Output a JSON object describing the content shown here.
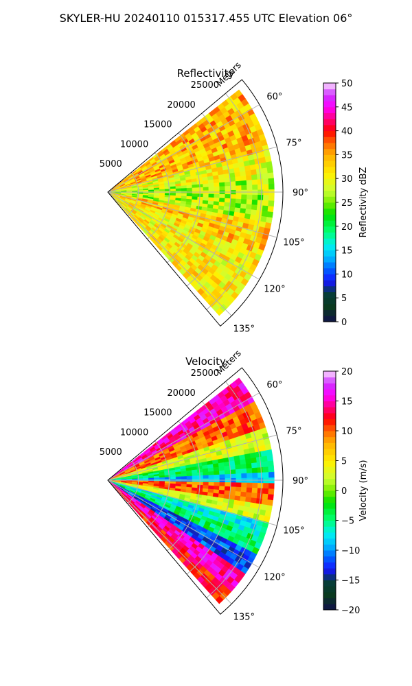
{
  "figure": {
    "title": "SKYLER-HU  20240110  015317.455 UTC Elevation 06°"
  },
  "chart_data": [
    {
      "type": "heatmap",
      "projection": "polar-sector",
      "title": "Reflectivity",
      "range_label": "Meters",
      "range_ticks": [
        5000,
        10000,
        15000,
        20000,
        25000
      ],
      "range_max": 28500,
      "azimuth_ticks": [
        "60°",
        "75°",
        "90°",
        "105°",
        "120°",
        "135°"
      ],
      "azimuth_tick_values": [
        60,
        75,
        90,
        105,
        120,
        135
      ],
      "azimuth_range": [
        50,
        140
      ],
      "grid": true,
      "colorbar": {
        "label": "Reflectivity dBZ",
        "min": 0,
        "max": 50,
        "ticks": [
          0,
          5,
          10,
          15,
          20,
          25,
          30,
          35,
          40,
          45,
          50
        ],
        "tick_labels": [
          "0",
          "5",
          "10",
          "15",
          "20",
          "25",
          "30",
          "35",
          "40",
          "45",
          "50"
        ]
      },
      "field_summary": {
        "dominant_range": [
          25,
          38
        ],
        "bands": [
          {
            "azimuth": [
              52,
              75
            ],
            "value_dBZ": 34
          },
          {
            "azimuth": [
              75,
              85
            ],
            "value_dBZ": 30
          },
          {
            "azimuth": [
              85,
              100
            ],
            "value_dBZ": 27
          },
          {
            "azimuth": [
              100,
              112
            ],
            "value_dBZ": 33
          },
          {
            "azimuth": [
              112,
              140
            ],
            "value_dBZ": 31
          }
        ]
      }
    },
    {
      "type": "heatmap",
      "projection": "polar-sector",
      "title": "Velocity",
      "range_label": "Meters",
      "range_ticks": [
        5000,
        10000,
        15000,
        20000,
        25000
      ],
      "range_max": 28500,
      "azimuth_ticks": [
        "60°",
        "75°",
        "90°",
        "105°",
        "120°",
        "135°"
      ],
      "azimuth_tick_values": [
        60,
        75,
        90,
        105,
        120,
        135
      ],
      "azimuth_range": [
        50,
        140
      ],
      "grid": true,
      "colorbar": {
        "label": "Velocity (m/s)",
        "min": -20,
        "max": 20,
        "ticks": [
          -20,
          -15,
          -10,
          -5,
          0,
          5,
          10,
          15,
          20
        ],
        "tick_labels": [
          "−20",
          "−15",
          "−10",
          "−5",
          "0",
          "5",
          "10",
          "15",
          "20"
        ]
      },
      "field_summary": {
        "bands": [
          {
            "azimuth": [
              52,
              62
            ],
            "value_ms": 15
          },
          {
            "azimuth": [
              62,
              72
            ],
            "value_ms": 10
          },
          {
            "azimuth": [
              72,
              80
            ],
            "value_ms": 3
          },
          {
            "azimuth": [
              80,
              87
            ],
            "value_ms": -4
          },
          {
            "azimuth": [
              87,
              92
            ],
            "value_ms": -9
          },
          {
            "azimuth": [
              92,
              98
            ],
            "value_ms": 10
          },
          {
            "azimuth": [
              98,
              104
            ],
            "value_ms": 3
          },
          {
            "azimuth": [
              104,
              110
            ],
            "value_ms": -7
          },
          {
            "azimuth": [
              110,
              116
            ],
            "value_ms": -4
          },
          {
            "azimuth": [
              116,
              124
            ],
            "value_ms": -12
          },
          {
            "azimuth": [
              124,
              132
            ],
            "value_ms": 15
          },
          {
            "azimuth": [
              132,
              140
            ],
            "value_ms": 12
          }
        ]
      }
    }
  ]
}
